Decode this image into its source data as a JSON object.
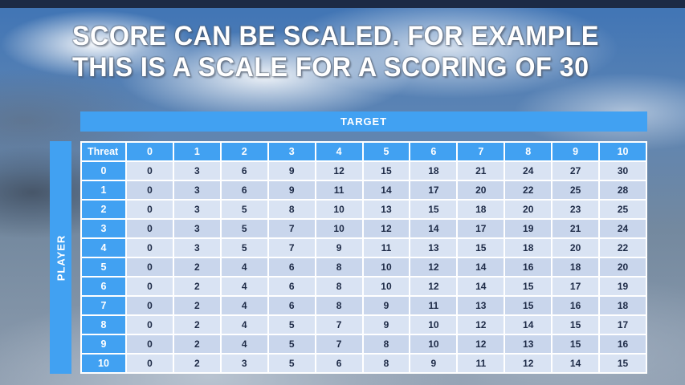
{
  "slide": {
    "title_line1": "SCORE CAN BE SCALED. FOR EXAMPLE",
    "title_line2": "THIS IS A SCALE FOR A SCORING OF 30"
  },
  "chart_data": {
    "type": "table",
    "title": "SCORE CAN BE SCALED. FOR EXAMPLE THIS IS A SCALE FOR A SCORING OF 30",
    "column_axis_label": "TARGET",
    "row_axis_label": "PLAYER",
    "corner_label": "Threat",
    "columns": [
      "0",
      "1",
      "2",
      "3",
      "4",
      "5",
      "6",
      "7",
      "8",
      "9",
      "10"
    ],
    "rows": [
      "0",
      "1",
      "2",
      "3",
      "4",
      "5",
      "6",
      "7",
      "8",
      "9",
      "10"
    ],
    "values": [
      [
        0,
        3,
        6,
        9,
        12,
        15,
        18,
        21,
        24,
        27,
        30
      ],
      [
        0,
        3,
        6,
        9,
        11,
        14,
        17,
        20,
        22,
        25,
        28
      ],
      [
        0,
        3,
        5,
        8,
        10,
        13,
        15,
        18,
        20,
        23,
        25
      ],
      [
        0,
        3,
        5,
        7,
        10,
        12,
        14,
        17,
        19,
        21,
        24
      ],
      [
        0,
        3,
        5,
        7,
        9,
        11,
        13,
        15,
        18,
        20,
        22
      ],
      [
        0,
        2,
        4,
        6,
        8,
        10,
        12,
        14,
        16,
        18,
        20
      ],
      [
        0,
        2,
        4,
        6,
        8,
        10,
        12,
        14,
        15,
        17,
        19
      ],
      [
        0,
        2,
        4,
        6,
        8,
        9,
        11,
        13,
        15,
        16,
        18
      ],
      [
        0,
        2,
        4,
        5,
        7,
        9,
        10,
        12,
        14,
        15,
        17
      ],
      [
        0,
        2,
        4,
        5,
        7,
        8,
        10,
        12,
        13,
        15,
        16
      ],
      [
        0,
        2,
        3,
        5,
        6,
        8,
        9,
        11,
        12,
        14,
        15
      ]
    ]
  },
  "colors": {
    "accent": "#41a1f2",
    "row_light": "#d9e3f3",
    "row_dark": "#c9d6ec",
    "cell_text": "#1d2a46",
    "title_color": "#ffffff",
    "strip": "#1c2a45"
  }
}
